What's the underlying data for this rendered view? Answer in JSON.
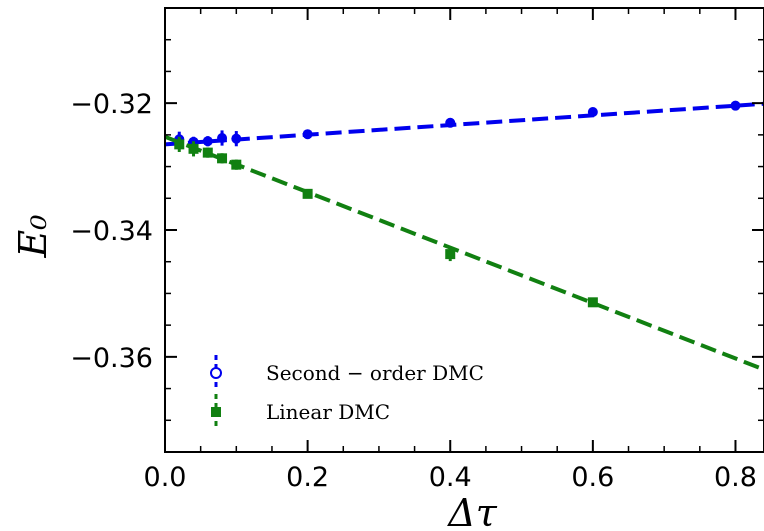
{
  "chart_data": {
    "type": "scatter",
    "xlabel": "Δτ",
    "ylabel": "E₀",
    "xlim": [
      0.0,
      0.84
    ],
    "ylim": [
      -0.375,
      -0.305
    ],
    "x_ticks": [
      "0.0",
      "0.2",
      "0.4",
      "0.6",
      "0.8"
    ],
    "y_ticks": [
      "−0.32",
      "−0.34",
      "−0.36"
    ],
    "x_tick_values": [
      0.0,
      0.2,
      0.4,
      0.6,
      0.8
    ],
    "y_tick_values": [
      -0.32,
      -0.34,
      -0.36
    ],
    "legend_position": "lower-left",
    "grid": false,
    "series": [
      {
        "name": "Second − order DMC",
        "marker": "circle",
        "color": "#0000ee",
        "x": [
          0.02,
          0.04,
          0.06,
          0.08,
          0.1,
          0.2,
          0.4,
          0.6,
          0.8
        ],
        "y": [
          -0.3257,
          -0.3261,
          -0.326,
          -0.3255,
          -0.3256,
          -0.3249,
          -0.3231,
          -0.3214,
          -0.3204
        ],
        "err": [
          0.0012,
          0.0008,
          0.0008,
          0.0012,
          0.0012,
          0.0006,
          0.0006,
          0.0006,
          0.0005
        ],
        "fit": {
          "x": [
            0.0,
            0.84
          ],
          "y": [
            -0.3265,
            -0.3201
          ]
        }
      },
      {
        "name": "Linear DMC",
        "marker": "square",
        "color": "#118011",
        "x": [
          0.02,
          0.04,
          0.06,
          0.08,
          0.1,
          0.2,
          0.4,
          0.6
        ],
        "y": [
          -0.3265,
          -0.3272,
          -0.3278,
          -0.3287,
          -0.3297,
          -0.3343,
          -0.3438,
          -0.3514
        ],
        "err": [
          0.0012,
          0.0012,
          0.0008,
          0.0008,
          0.0008,
          0.0006,
          0.0011,
          0.0006
        ],
        "fit": {
          "x": [
            0.0,
            0.84
          ],
          "y": [
            -0.3253,
            -0.362
          ]
        }
      }
    ]
  }
}
